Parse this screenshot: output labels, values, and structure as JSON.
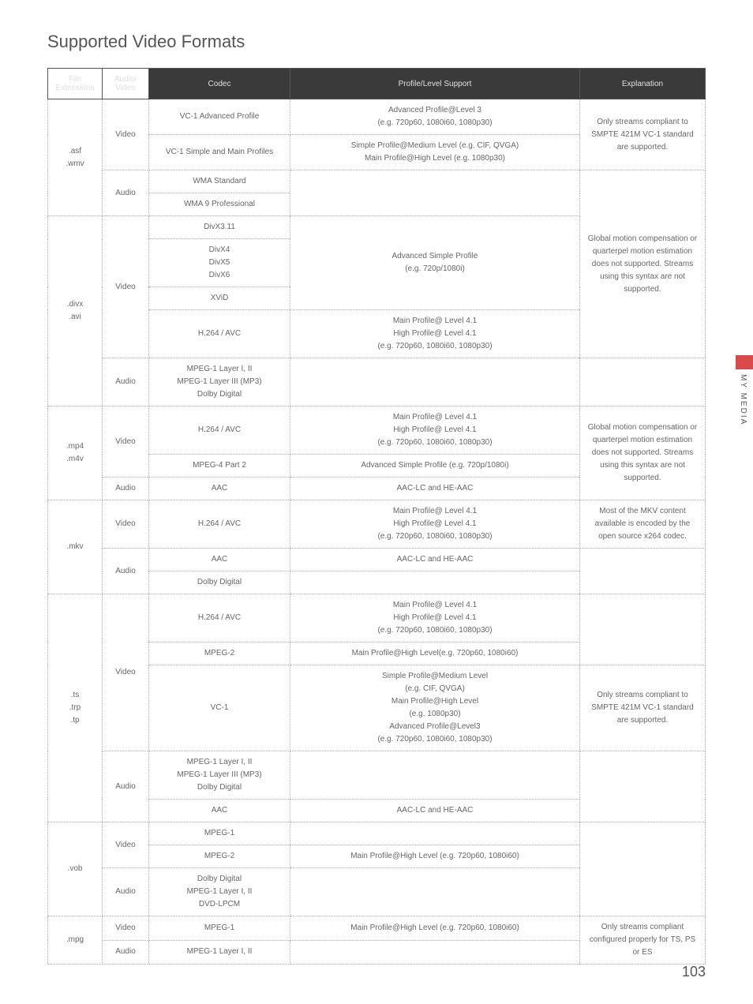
{
  "page_title": "Supported Video Formats",
  "side_label": "MY MEDIA",
  "page_number": "103",
  "headers": {
    "ext": "File Extensions",
    "av": "Audio/ Video",
    "codec": "Codec",
    "profile": "Profile/Level Support",
    "expl": "Explanation"
  },
  "asf": {
    "ext": ".asf\n.wmv",
    "video": "Video",
    "audio": "Audio",
    "vc1adv": "VC-1 Advanced Profile",
    "vc1adv_p": "Advanced Profile@Level 3\n(e.g. 720p60, 1080i60, 1080p30)",
    "vc1simple": "VC-1 Simple and Main Profiles",
    "vc1simple_p": "Simple Profile@Medium Level (e.g. CIF, QVGA)\nMain Profile@High Level (e.g. 1080p30)",
    "wma_std": "WMA Standard",
    "wma_pro": "WMA 9 Professional",
    "expl": "Only streams compliant to SMPTE 421M VC-1 standard are supported."
  },
  "divx": {
    "ext": ".divx\n.avi",
    "video": "Video",
    "audio": "Audio",
    "divx311": "DivX3.11",
    "divx456": "DivX4\nDivX5\nDivX6",
    "xvid": "XViD",
    "advsimple_p": "Advanced Simple Profile\n(e.g. 720p/1080i)",
    "h264": "H.264 / AVC",
    "h264_p": "Main Profile@ Level 4.1\nHigh Profile@ Level 4.1\n(e.g. 720p60, 1080i60, 1080p30)",
    "audio_codec": "MPEG-1 Layer I, II\nMPEG-1 Layer III (MP3)\nDolby Digital",
    "expl": "Global motion compensation or quarterpel motion estimation does not supported. Streams using this syntax are not supported."
  },
  "mp4": {
    "ext": ".mp4\n.m4v",
    "video": "Video",
    "audio": "Audio",
    "h264": "H.264 / AVC",
    "h264_p": "Main Profile@ Level 4.1\nHigh Profile@ Level 4.1\n(e.g. 720p60, 1080i60, 1080p30)",
    "mpeg4p2": "MPEG-4 Part 2",
    "mpeg4p2_p": "Advanced Simple Profile (e.g. 720p/1080i)",
    "aac": "AAC",
    "aac_p": "AAC-LC and HE-AAC",
    "expl": "Global motion compensation or quarterpel motion estimation does not supported. Streams using this syntax are not supported."
  },
  "mkv": {
    "ext": ".mkv",
    "video": "Video",
    "audio": "Audio",
    "h264": "H.264 / AVC",
    "h264_p": "Main Profile@ Level 4.1\nHigh Profile@ Level 4.1\n(e.g. 720p60, 1080i60, 1080p30)",
    "aac": "AAC",
    "aac_p": "AAC-LC and HE-AAC",
    "dolby": "Dolby Digital",
    "expl": "Most of the MKV content available is encoded by the open source x264 codec."
  },
  "ts": {
    "ext": ".ts\n.trp\n.tp",
    "video": "Video",
    "audio": "Audio",
    "h264": "H.264 / AVC",
    "h264_p": "Main Profile@ Level 4.1\nHigh Profile@ Level 4.1\n(e.g. 720p60, 1080i60, 1080p30)",
    "mpeg2": "MPEG-2",
    "mpeg2_p": "Main Profile@High Level(e.g. 720p60, 1080i60)",
    "vc1": "VC-1",
    "vc1_p": "Simple Profile@Medium Level\n(e.g. CIF, QVGA)\nMain Profile@High Level\n(e.g. 1080p30)\nAdvanced Profile@Level3\n(e.g. 720p60, 1080i60, 1080p30)",
    "audio_codec": "MPEG-1 Layer I, II\nMPEG-1 Layer III (MP3)\nDolby Digital",
    "aac": "AAC",
    "aac_p": "AAC-LC and HE-AAC",
    "expl": "Only streams compliant to SMPTE 421M VC-1 standard are supported."
  },
  "vob": {
    "ext": ".vob",
    "video": "Video",
    "audio": "Audio",
    "mpeg1": "MPEG-1",
    "mpeg2": "MPEG-2",
    "mpeg2_p": "Main Profile@High Level (e.g. 720p60, 1080i60)",
    "audio_codec": "Dolby Digital\nMPEG-1 Layer I, II\nDVD-LPCM"
  },
  "mpg": {
    "ext": ".mpg",
    "video": "Video",
    "audio": "Audio",
    "mpeg1": "MPEG-1",
    "mpeg1_p": "Main Profile@High Level (e.g. 720p60, 1080i60)",
    "audio_codec": "MPEG-1 Layer I, II",
    "expl": "Only streams compliant configured properly for TS, PS or ES"
  }
}
